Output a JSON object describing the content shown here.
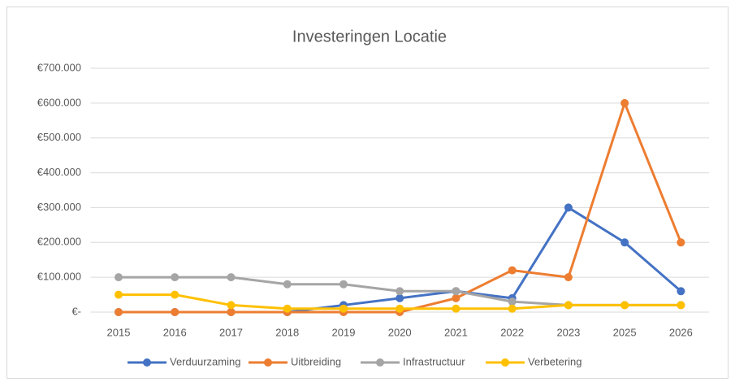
{
  "chart_data": {
    "type": "line",
    "title": "Investeringen Locatie",
    "categories": [
      "2015",
      "2016",
      "2017",
      "2018",
      "2019",
      "2020",
      "2021",
      "2022",
      "2023",
      "2025",
      "2026"
    ],
    "series": [
      {
        "name": "Verduurzaming",
        "color": "#4472c4",
        "values": [
          0,
          0,
          0,
          0,
          20000,
          40000,
          60000,
          40000,
          300000,
          200000,
          60000
        ]
      },
      {
        "name": "Uitbreiding",
        "color": "#ed7d31",
        "values": [
          0,
          0,
          0,
          0,
          0,
          0,
          40000,
          120000,
          100000,
          600000,
          200000
        ]
      },
      {
        "name": "Infrastructuur",
        "color": "#a5a5a5",
        "values": [
          100000,
          100000,
          100000,
          80000,
          80000,
          60000,
          60000,
          30000,
          20000,
          20000,
          20000
        ]
      },
      {
        "name": "Verbetering",
        "color": "#ffc000",
        "values": [
          50000,
          50000,
          20000,
          10000,
          10000,
          10000,
          10000,
          10000,
          20000,
          20000,
          20000
        ]
      }
    ],
    "ylim": [
      0,
      700000
    ],
    "yticks": [
      {
        "value": 0,
        "label": "€-"
      },
      {
        "value": 100000,
        "label": "€100.000"
      },
      {
        "value": 200000,
        "label": "€200.000"
      },
      {
        "value": 300000,
        "label": "€300.000"
      },
      {
        "value": 400000,
        "label": "€400.000"
      },
      {
        "value": 500000,
        "label": "€500.000"
      },
      {
        "value": 600000,
        "label": "€600.000"
      },
      {
        "value": 700000,
        "label": "€700.000"
      }
    ],
    "grid": true,
    "legend": "bottom"
  }
}
